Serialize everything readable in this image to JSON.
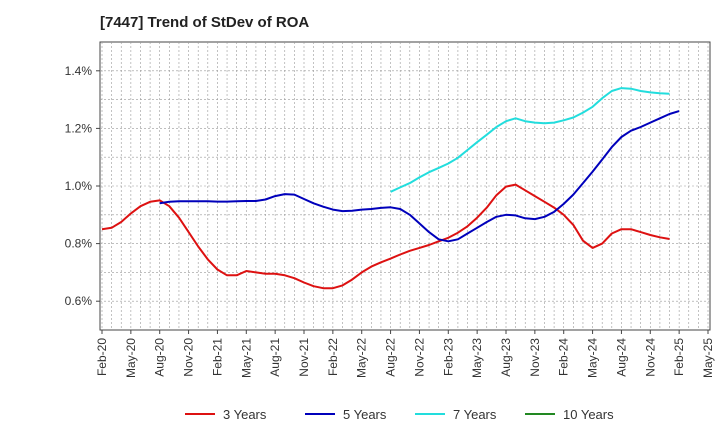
{
  "chart_data": {
    "type": "line",
    "title": "[7447]  Trend of StDev of ROA",
    "xlabel": "",
    "ylabel": "",
    "x_ticks": [
      "Feb-20",
      "May-20",
      "Aug-20",
      "Nov-20",
      "Feb-21",
      "May-21",
      "Aug-21",
      "Nov-21",
      "Feb-22",
      "May-22",
      "Aug-22",
      "Nov-22",
      "Feb-23",
      "May-23",
      "Aug-23",
      "Nov-23",
      "Feb-24",
      "May-24",
      "Aug-24",
      "Nov-24",
      "Feb-25",
      "May-25"
    ],
    "y_ticks": [
      "0.6%",
      "0.8%",
      "1.0%",
      "1.2%",
      "1.4%"
    ],
    "ylim": [
      0.5,
      1.5
    ],
    "grid": true,
    "legend_position": "bottom",
    "series": [
      {
        "name": "3 Years",
        "color": "#dd1111",
        "points": [
          [
            "Feb-20",
            0.85
          ],
          [
            "Mar-20",
            0.855
          ],
          [
            "Apr-20",
            0.875
          ],
          [
            "May-20",
            0.905
          ],
          [
            "Jun-20",
            0.93
          ],
          [
            "Jul-20",
            0.945
          ],
          [
            "Aug-20",
            0.95
          ],
          [
            "Sep-20",
            0.93
          ],
          [
            "Oct-20",
            0.89
          ],
          [
            "Nov-20",
            0.84
          ],
          [
            "Dec-20",
            0.79
          ],
          [
            "Jan-21",
            0.745
          ],
          [
            "Feb-21",
            0.71
          ],
          [
            "Mar-21",
            0.69
          ],
          [
            "Apr-21",
            0.69
          ],
          [
            "May-21",
            0.705
          ],
          [
            "Jun-21",
            0.7
          ],
          [
            "Jul-21",
            0.695
          ],
          [
            "Aug-21",
            0.695
          ],
          [
            "Sep-21",
            0.69
          ],
          [
            "Oct-21",
            0.68
          ],
          [
            "Nov-21",
            0.665
          ],
          [
            "Dec-21",
            0.652
          ],
          [
            "Jan-22",
            0.645
          ],
          [
            "Feb-22",
            0.645
          ],
          [
            "Mar-22",
            0.655
          ],
          [
            "Apr-22",
            0.675
          ],
          [
            "May-22",
            0.7
          ],
          [
            "Jun-22",
            0.72
          ],
          [
            "Jul-22",
            0.735
          ],
          [
            "Aug-22",
            0.748
          ],
          [
            "Sep-22",
            0.762
          ],
          [
            "Oct-22",
            0.775
          ],
          [
            "Nov-22",
            0.785
          ],
          [
            "Dec-22",
            0.795
          ],
          [
            "Jan-23",
            0.808
          ],
          [
            "Feb-23",
            0.82
          ],
          [
            "Mar-23",
            0.838
          ],
          [
            "Apr-23",
            0.86
          ],
          [
            "May-23",
            0.89
          ],
          [
            "Jun-23",
            0.925
          ],
          [
            "Jul-23",
            0.968
          ],
          [
            "Aug-23",
            0.998
          ],
          [
            "Sep-23",
            1.005
          ],
          [
            "Oct-23",
            0.985
          ],
          [
            "Nov-23",
            0.965
          ],
          [
            "Dec-23",
            0.945
          ],
          [
            "Jan-24",
            0.925
          ],
          [
            "Feb-24",
            0.9
          ],
          [
            "Mar-24",
            0.865
          ],
          [
            "Apr-24",
            0.81
          ],
          [
            "May-24",
            0.785
          ],
          [
            "Jun-24",
            0.8
          ],
          [
            "Jul-24",
            0.835
          ],
          [
            "Aug-24",
            0.85
          ],
          [
            "Sep-24",
            0.85
          ],
          [
            "Oct-24",
            0.84
          ],
          [
            "Nov-24",
            0.83
          ],
          [
            "Dec-24",
            0.822
          ],
          [
            "Jan-25",
            0.816
          ]
        ]
      },
      {
        "name": "5 Years",
        "color": "#0000bb",
        "points": [
          [
            "Aug-20",
            0.94
          ],
          [
            "Sep-20",
            0.945
          ],
          [
            "Oct-20",
            0.947
          ],
          [
            "Nov-20",
            0.947
          ],
          [
            "Dec-20",
            0.947
          ],
          [
            "Jan-21",
            0.947
          ],
          [
            "Feb-21",
            0.946
          ],
          [
            "Mar-21",
            0.946
          ],
          [
            "Apr-21",
            0.947
          ],
          [
            "May-21",
            0.948
          ],
          [
            "Jun-21",
            0.948
          ],
          [
            "Jul-21",
            0.953
          ],
          [
            "Aug-21",
            0.965
          ],
          [
            "Sep-21",
            0.972
          ],
          [
            "Oct-21",
            0.97
          ],
          [
            "Nov-21",
            0.955
          ],
          [
            "Dec-21",
            0.94
          ],
          [
            "Jan-22",
            0.928
          ],
          [
            "Feb-22",
            0.918
          ],
          [
            "Mar-22",
            0.913
          ],
          [
            "Apr-22",
            0.914
          ],
          [
            "May-22",
            0.918
          ],
          [
            "Jun-22",
            0.92
          ],
          [
            "Jul-22",
            0.924
          ],
          [
            "Aug-22",
            0.926
          ],
          [
            "Sep-22",
            0.92
          ],
          [
            "Oct-22",
            0.9
          ],
          [
            "Nov-22",
            0.87
          ],
          [
            "Dec-22",
            0.84
          ],
          [
            "Jan-23",
            0.815
          ],
          [
            "Feb-23",
            0.808
          ],
          [
            "Mar-23",
            0.815
          ],
          [
            "Apr-23",
            0.835
          ],
          [
            "May-23",
            0.855
          ],
          [
            "Jun-23",
            0.875
          ],
          [
            "Jul-23",
            0.893
          ],
          [
            "Aug-23",
            0.9
          ],
          [
            "Sep-23",
            0.898
          ],
          [
            "Oct-23",
            0.888
          ],
          [
            "Nov-23",
            0.885
          ],
          [
            "Dec-23",
            0.893
          ],
          [
            "Jan-24",
            0.91
          ],
          [
            "Feb-24",
            0.938
          ],
          [
            "Mar-24",
            0.97
          ],
          [
            "Apr-24",
            1.01
          ],
          [
            "May-24",
            1.05
          ],
          [
            "Jun-24",
            1.092
          ],
          [
            "Jul-24",
            1.135
          ],
          [
            "Aug-24",
            1.17
          ],
          [
            "Sep-24",
            1.192
          ],
          [
            "Oct-24",
            1.205
          ],
          [
            "Nov-24",
            1.22
          ],
          [
            "Dec-24",
            1.235
          ],
          [
            "Jan-25",
            1.25
          ],
          [
            "Feb-25",
            1.26
          ]
        ]
      },
      {
        "name": "7 Years",
        "color": "#22dddd",
        "points": [
          [
            "Aug-22",
            0.98
          ],
          [
            "Sep-22",
            0.995
          ],
          [
            "Oct-22",
            1.01
          ],
          [
            "Nov-22",
            1.03
          ],
          [
            "Dec-22",
            1.048
          ],
          [
            "Jan-23",
            1.063
          ],
          [
            "Feb-23",
            1.078
          ],
          [
            "Mar-23",
            1.098
          ],
          [
            "Apr-23",
            1.125
          ],
          [
            "May-23",
            1.152
          ],
          [
            "Jun-23",
            1.178
          ],
          [
            "Jul-23",
            1.205
          ],
          [
            "Aug-23",
            1.225
          ],
          [
            "Sep-23",
            1.235
          ],
          [
            "Oct-23",
            1.225
          ],
          [
            "Nov-23",
            1.22
          ],
          [
            "Dec-23",
            1.218
          ],
          [
            "Jan-24",
            1.22
          ],
          [
            "Feb-24",
            1.228
          ],
          [
            "Mar-24",
            1.238
          ],
          [
            "Apr-24",
            1.255
          ],
          [
            "May-24",
            1.275
          ],
          [
            "Jun-24",
            1.305
          ],
          [
            "Jul-24",
            1.33
          ],
          [
            "Aug-24",
            1.34
          ],
          [
            "Sep-24",
            1.338
          ],
          [
            "Oct-24",
            1.33
          ],
          [
            "Nov-24",
            1.325
          ],
          [
            "Dec-24",
            1.322
          ],
          [
            "Jan-25",
            1.32
          ]
        ]
      },
      {
        "name": "10 Years",
        "color": "#228822",
        "points": []
      }
    ]
  }
}
